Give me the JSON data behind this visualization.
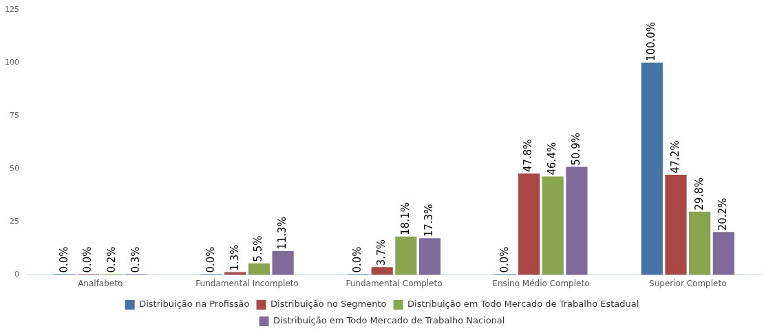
{
  "chart_data": {
    "type": "bar",
    "categories": [
      "Analfabeto",
      "Fundamental Incompleto",
      "Fundamental Completo",
      "Ensino Médio Completo",
      "Superior Completo"
    ],
    "series": [
      {
        "name": "Distribuição na Profissão",
        "color": "#4572a7",
        "values": [
          0,
          0,
          0,
          0,
          100
        ],
        "value_labels": [
          "0.0%",
          "0.0%",
          "0.0%",
          "0.0%",
          "100.0%"
        ]
      },
      {
        "name": "Distribuição no Segmento",
        "color": "#aa4643",
        "values": [
          0,
          1.3,
          3.7,
          47.8,
          47.2
        ],
        "value_labels": [
          "0.0%",
          "1.3%",
          "3.7%",
          "47.8%",
          "47.2%"
        ]
      },
      {
        "name": "Distribuição em Todo Mercado de Trabalho Estadual",
        "color": "#89a54e",
        "values": [
          0.2,
          5.5,
          18.1,
          46.4,
          29.8
        ],
        "value_labels": [
          "0.2%",
          "5.5%",
          "18.1%",
          "46.4%",
          "29.8%"
        ]
      },
      {
        "name": "Distribuição em Todo Mercado de Trabalho Nacional",
        "color": "#80699b",
        "values": [
          0.3,
          11.3,
          17.3,
          50.9,
          20.2
        ],
        "value_labels": [
          "0.3%",
          "11.3%",
          "17.3%",
          "50.9%",
          "20.2%"
        ]
      }
    ],
    "ylim": [
      0,
      125
    ],
    "yticks": [
      0,
      25,
      50,
      75,
      100,
      125
    ],
    "grid": false,
    "legend": "bottom"
  }
}
